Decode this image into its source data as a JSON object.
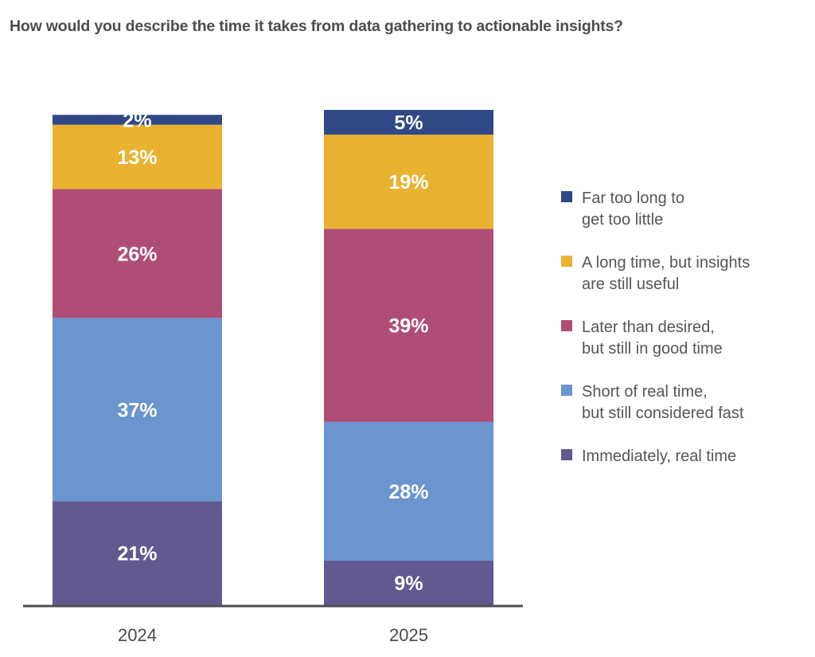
{
  "chart_data": {
    "type": "bar",
    "stacked": true,
    "title": "How would you describe the time it takes from data gathering to actionable insights?",
    "xlabel": "",
    "ylabel": "",
    "ylim": [
      0,
      100
    ],
    "grid": false,
    "legend_position": "right",
    "categories": [
      "2024",
      "2025"
    ],
    "series": [
      {
        "name": "Immediately, real time",
        "color": "#625991",
        "values": [
          21,
          9
        ],
        "labels": [
          "21%",
          "9%"
        ]
      },
      {
        "name": "Short of real time,\nbut still considered fast",
        "color": "#6A95CF",
        "values": [
          37,
          28
        ],
        "labels": [
          "37%",
          "28%"
        ]
      },
      {
        "name": "Later than desired,\nbut still in good time",
        "color": "#B04D77",
        "values": [
          26,
          39
        ],
        "labels": [
          "26%",
          "39%"
        ]
      },
      {
        "name": "A long time, but insights\nare still useful",
        "color": "#EAB231",
        "values": [
          13,
          19
        ],
        "labels": [
          "13%",
          "19%"
        ]
      },
      {
        "name": "Far too long to\nget too little",
        "color": "#304886",
        "values": [
          2,
          5
        ],
        "labels": [
          "2%",
          "5%"
        ]
      }
    ],
    "legend_order": [
      4,
      3,
      2,
      1,
      0
    ],
    "axis_color": "#4f4f4f"
  }
}
